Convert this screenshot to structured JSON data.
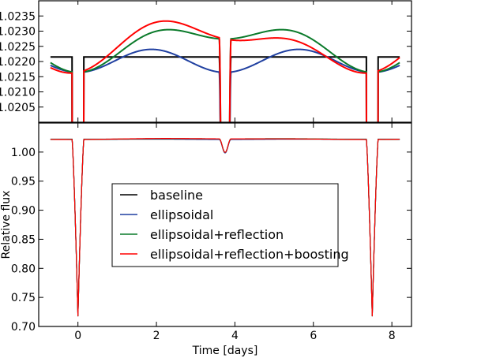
{
  "chart_data": [
    {
      "type": "line",
      "panel": "top (zoom)",
      "title": "",
      "xlabel": "",
      "ylabel": "",
      "xlim": [
        -1,
        8.5
      ],
      "ylim": [
        1.02,
        1.024
      ],
      "xticks": [
        0,
        2,
        4,
        6,
        8
      ],
      "yticks": [
        1.0205,
        1.021,
        1.0215,
        1.022,
        1.0225,
        1.023,
        1.0235
      ],
      "ytick_labels": [
        "1.0205",
        "1.0210",
        "1.0215",
        "1.0220",
        "1.0225",
        "1.0230",
        "1.0235"
      ]
    },
    {
      "type": "line",
      "panel": "bottom (full)",
      "xlabel": "Time [days]",
      "ylabel": "Relative flux",
      "xlim": [
        -1,
        8.5
      ],
      "ylim": [
        0.7,
        1.05
      ],
      "xticks": [
        0,
        2,
        4,
        6,
        8
      ],
      "xtick_labels": [
        "0",
        "2",
        "4",
        "6",
        "8"
      ],
      "yticks": [
        0.7,
        0.75,
        0.8,
        0.85,
        0.9,
        0.95,
        1.0
      ],
      "ytick_labels": [
        "0.70",
        "0.75",
        "0.80",
        "0.85",
        "0.90",
        "0.95",
        "1.00"
      ],
      "legend_position": "center"
    }
  ],
  "model": {
    "time_range": [
      -0.7,
      8.2
    ],
    "period": 7.5,
    "baseline": 1.02215,
    "ellipsoidal_mean": 1.02202,
    "ellipsoidal_amplitude": 0.00038,
    "reflection_amplitude": 0.0011,
    "boosting_amplitude": 0.0003,
    "primary_eclipse_time": 0.0,
    "primary_eclipse_min_flux": 0.718,
    "secondary_eclipse_time": 3.75,
    "secondary_eclipse_min_flux": 0.999,
    "eclipse_half_width": 0.15
  },
  "series": [
    {
      "name": "baseline",
      "color": "#000000"
    },
    {
      "name": "ellipsoidal",
      "color": "#1f3fa0"
    },
    {
      "name": "ellipsoidal+reflection",
      "color": "#0a7a2a"
    },
    {
      "name": "ellipsoidal+reflection+boosting",
      "color": "#ff0000"
    }
  ],
  "legend": [
    "baseline",
    "ellipsoidal",
    "ellipsoidal+reflection",
    "ellipsoidal+reflection+boosting"
  ],
  "labels": {
    "xlabel": "Time [days]",
    "ylabel": "Relative flux"
  }
}
